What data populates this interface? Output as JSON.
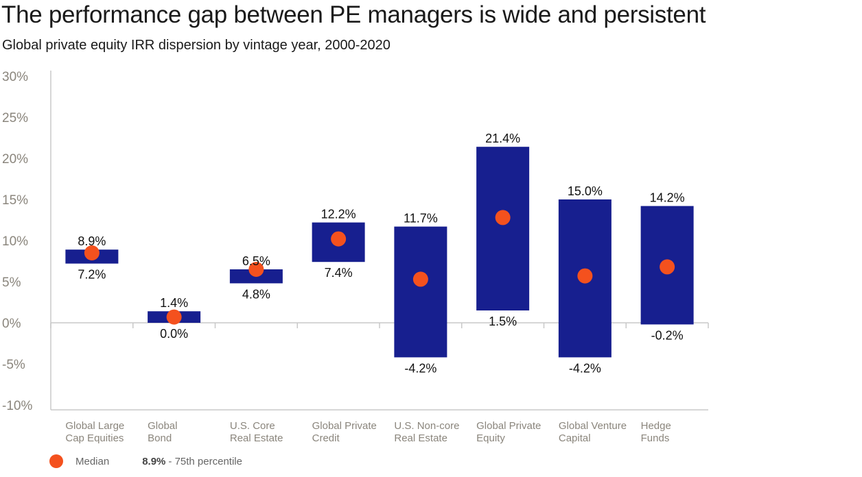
{
  "title": "The performance gap between PE managers is wide and persistent",
  "subtitle": "Global private equity IRR dispersion by vintage year, 2000-2020",
  "legend": {
    "median_label": "Median",
    "sample_value": "8.9%",
    "sample_text": "- 75th percentile"
  },
  "colors": {
    "bar": "#171f8f",
    "median": "#f4511e",
    "axis_text": "#8a857c",
    "category_text": "#8a857c",
    "axis_line": "#c8c8c8"
  },
  "chart_data": {
    "type": "bar",
    "subtype": "floating range with median marker",
    "categories": [
      [
        "Global Large",
        "Cap Equities"
      ],
      [
        "Global",
        "Bond"
      ],
      [
        "U.S. Core",
        "Real Estate"
      ],
      [
        "Global Private",
        "Credit"
      ],
      [
        "U.S. Non-core",
        "Real Estate"
      ],
      [
        "Global Private",
        "Equity"
      ],
      [
        "Global Venture",
        "Capital"
      ],
      [
        "Hedge",
        "Funds"
      ]
    ],
    "top": [
      8.9,
      1.4,
      6.5,
      12.2,
      11.7,
      21.4,
      15.0,
      14.2
    ],
    "bottom": [
      7.2,
      0.0,
      4.8,
      7.4,
      -4.2,
      1.5,
      -4.2,
      -0.2
    ],
    "top_labels": [
      "8.9%",
      "1.4%",
      "6.5%",
      "12.2%",
      "11.7%",
      "21.4%",
      "15.0%",
      "14.2%"
    ],
    "bottom_labels": [
      "7.2%",
      "0.0%",
      "4.8%",
      "7.4%",
      "-4.2%",
      "1.5%",
      "-4.2%",
      "-0.2%"
    ],
    "median": [
      8.5,
      0.7,
      6.5,
      10.2,
      5.3,
      12.8,
      5.7,
      6.8
    ],
    "ylim": [
      -10,
      30
    ],
    "yticks": [
      30,
      25,
      20,
      15,
      10,
      5,
      0,
      -5,
      -10
    ],
    "ytick_labels": [
      "30%",
      "25%",
      "20%",
      "15%",
      "10%",
      "5%",
      "0%",
      "-5%",
      "-10%"
    ],
    "grid": false
  }
}
